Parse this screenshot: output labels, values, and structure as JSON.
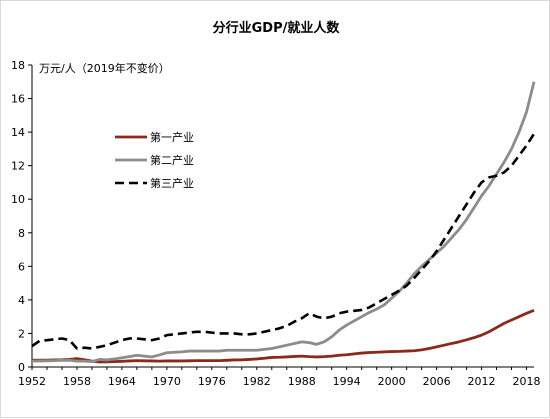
{
  "chart_data": {
    "type": "line",
    "title": "分行业GDP/就业人数",
    "ylabel": "万元/人（2019年不变价）",
    "xlabel": "",
    "xlim": [
      1952,
      2019
    ],
    "ylim": [
      0,
      18
    ],
    "x_ticks": [
      1952,
      1958,
      1964,
      1970,
      1976,
      1982,
      1988,
      1994,
      2000,
      2006,
      2012,
      2018
    ],
    "y_ticks": [
      0,
      2,
      4,
      6,
      8,
      10,
      12,
      14,
      16,
      18
    ],
    "grid": false,
    "legend_position": "upper-left",
    "x": [
      1952,
      1953,
      1954,
      1955,
      1956,
      1957,
      1958,
      1959,
      1960,
      1961,
      1962,
      1963,
      1964,
      1965,
      1966,
      1967,
      1968,
      1969,
      1970,
      1971,
      1972,
      1973,
      1974,
      1975,
      1976,
      1977,
      1978,
      1979,
      1980,
      1981,
      1982,
      1983,
      1984,
      1985,
      1986,
      1987,
      1988,
      1989,
      1990,
      1991,
      1992,
      1993,
      1994,
      1995,
      1996,
      1997,
      1998,
      1999,
      2000,
      2001,
      2002,
      2003,
      2004,
      2005,
      2006,
      2007,
      2008,
      2009,
      2010,
      2011,
      2012,
      2013,
      2014,
      2015,
      2016,
      2017,
      2018,
      2019
    ],
    "series": [
      {
        "name": "第一产业",
        "color": "#8b2a1a",
        "dash": "solid",
        "values": [
          0.4,
          0.41,
          0.41,
          0.42,
          0.43,
          0.45,
          0.5,
          0.43,
          0.35,
          0.3,
          0.31,
          0.32,
          0.34,
          0.36,
          0.38,
          0.37,
          0.36,
          0.35,
          0.36,
          0.36,
          0.36,
          0.37,
          0.38,
          0.38,
          0.38,
          0.38,
          0.4,
          0.42,
          0.43,
          0.45,
          0.48,
          0.52,
          0.57,
          0.58,
          0.6,
          0.63,
          0.65,
          0.62,
          0.6,
          0.62,
          0.65,
          0.7,
          0.73,
          0.78,
          0.83,
          0.86,
          0.88,
          0.9,
          0.92,
          0.93,
          0.95,
          0.97,
          1.02,
          1.1,
          1.2,
          1.3,
          1.4,
          1.5,
          1.62,
          1.75,
          1.9,
          2.1,
          2.35,
          2.6,
          2.8,
          3.0,
          3.2,
          3.38
        ]
      },
      {
        "name": "第二产业",
        "color": "#8c8c8c",
        "dash": "solid",
        "values": [
          0.35,
          0.36,
          0.37,
          0.38,
          0.4,
          0.4,
          0.35,
          0.35,
          0.32,
          0.45,
          0.42,
          0.48,
          0.55,
          0.62,
          0.7,
          0.65,
          0.6,
          0.72,
          0.85,
          0.88,
          0.9,
          0.95,
          0.95,
          0.95,
          0.95,
          0.95,
          1.0,
          1.0,
          1.0,
          1.0,
          1.0,
          1.05,
          1.1,
          1.2,
          1.3,
          1.4,
          1.5,
          1.45,
          1.35,
          1.5,
          1.8,
          2.2,
          2.5,
          2.75,
          3.0,
          3.25,
          3.45,
          3.7,
          4.1,
          4.5,
          5.0,
          5.55,
          6.0,
          6.4,
          6.8,
          7.2,
          7.7,
          8.2,
          8.8,
          9.5,
          10.2,
          10.8,
          11.5,
          12.2,
          13.0,
          14.0,
          15.2,
          17.0
        ]
      },
      {
        "name": "第三产业",
        "color": "#000000",
        "dash": "dashed",
        "values": [
          1.25,
          1.55,
          1.6,
          1.65,
          1.7,
          1.6,
          1.1,
          1.15,
          1.1,
          1.2,
          1.3,
          1.45,
          1.6,
          1.7,
          1.7,
          1.65,
          1.6,
          1.7,
          1.9,
          1.95,
          2.0,
          2.05,
          2.1,
          2.1,
          2.05,
          2.0,
          2.0,
          2.0,
          1.95,
          1.95,
          2.0,
          2.1,
          2.2,
          2.3,
          2.45,
          2.7,
          2.9,
          3.2,
          3.0,
          2.9,
          3.0,
          3.2,
          3.3,
          3.35,
          3.4,
          3.55,
          3.8,
          4.05,
          4.3,
          4.55,
          4.85,
          5.3,
          5.8,
          6.3,
          6.9,
          7.6,
          8.3,
          9.0,
          9.7,
          10.4,
          11.0,
          11.3,
          11.4,
          11.6,
          12.0,
          12.6,
          13.2,
          13.9
        ]
      }
    ]
  }
}
